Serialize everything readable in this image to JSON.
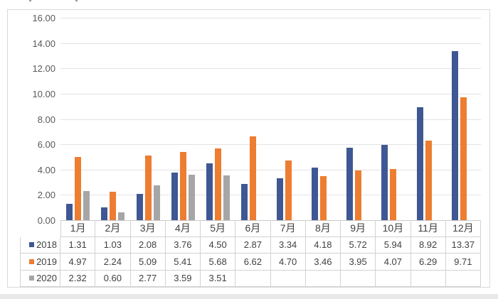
{
  "page": {
    "background_color": "#ffffff",
    "bottom_strip_color": "#e9e9e9",
    "frame_border_color": "#d9d9d9",
    "cropped_title_fragment_color": "#999999"
  },
  "chart_data": {
    "type": "bar",
    "title": "",
    "categories": [
      "1月",
      "2月",
      "3月",
      "4月",
      "5月",
      "6月",
      "7月",
      "8月",
      "9月",
      "10月",
      "11月",
      "12月"
    ],
    "series": [
      {
        "name": "2018",
        "color": "#3f5793",
        "values": [
          1.31,
          1.03,
          2.08,
          3.76,
          4.5,
          2.87,
          3.34,
          4.18,
          5.72,
          5.94,
          8.92,
          13.37
        ]
      },
      {
        "name": "2019",
        "color": "#ed7d31",
        "values": [
          4.97,
          2.24,
          5.09,
          5.41,
          5.68,
          6.62,
          4.7,
          3.46,
          3.95,
          4.07,
          6.29,
          9.71
        ]
      },
      {
        "name": "2020",
        "color": "#a6a6a6",
        "values": [
          2.32,
          0.6,
          2.77,
          3.59,
          3.51,
          null,
          null,
          null,
          null,
          null,
          null,
          null
        ]
      }
    ],
    "ylim": [
      0,
      16
    ],
    "ytick_step": 2,
    "ytick_labels": [
      "16.00",
      "14.00",
      "12.00",
      "10.00",
      "8.00",
      "6.00",
      "4.00",
      "2.00",
      "0.00"
    ],
    "xlabel": "",
    "ylabel": "",
    "grid": true,
    "gridline_color": "#e3e3e3",
    "axis_line_color": "#c9c9c9",
    "axis_text_color": "#595959",
    "legend_position": "data-table",
    "data_table": {
      "border_color": "#d2d2d2",
      "text_color": "#404040",
      "value_decimals": 2,
      "row_labels": [
        "2018",
        "2019",
        "2020"
      ]
    }
  }
}
